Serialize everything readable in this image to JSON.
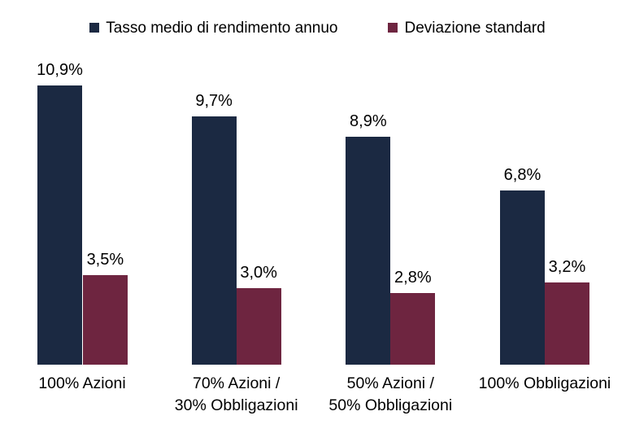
{
  "chart_data": {
    "type": "bar",
    "categories": [
      [
        "100% Azioni"
      ],
      [
        "70% Azioni /",
        "30% Obbligazioni"
      ],
      [
        "50% Azioni /",
        "50% Obbligazioni"
      ],
      [
        "100% Obbligazioni"
      ]
    ],
    "series": [
      {
        "name": "Tasso medio di rendimento annuo",
        "color": "#1b2942",
        "values": [
          10.9,
          9.7,
          8.9,
          6.8
        ],
        "labels": [
          "10,9%",
          "9,7%",
          "8,9%",
          "6,8%"
        ]
      },
      {
        "name": "Deviazione standard",
        "color": "#6e2540",
        "values": [
          3.5,
          3.0,
          2.8,
          3.2
        ],
        "labels": [
          "3,5%",
          "3,0%",
          "2,8%",
          "3,2%"
        ]
      }
    ],
    "title": "",
    "xlabel": "",
    "ylabel": "",
    "ylim": [
      0,
      12
    ],
    "grid": false,
    "legend_position": "top",
    "value_label_format": "italian-decimal-comma-percent",
    "background_color": "#ffffff",
    "text_color": "#000000"
  }
}
